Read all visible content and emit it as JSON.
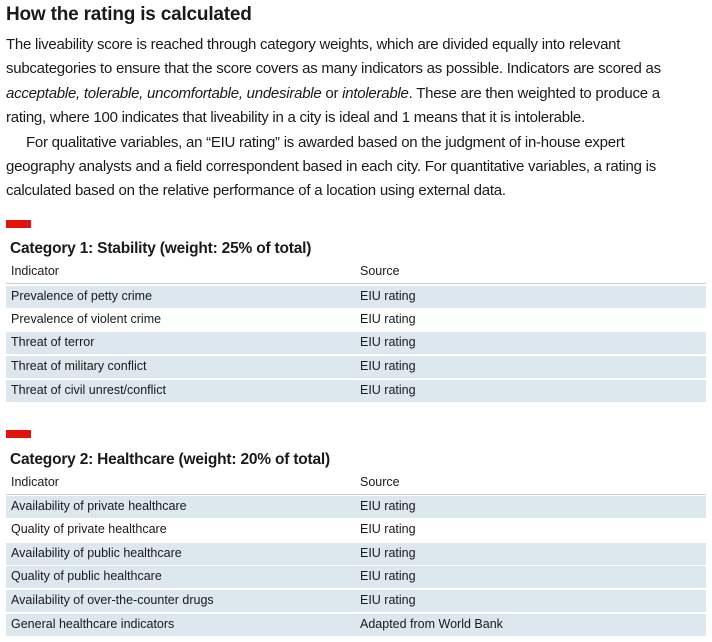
{
  "title": "How the rating is calculated",
  "intro": {
    "p1_l1": "The liveability score is reached through category weights, which are divided equally into relevant",
    "p1_l2": "subcategories to ensure that the score covers as many indicators as possible. Indicators are scored as",
    "p1_l3_em1": "acceptable, tolerable, uncomfortable, undesirable",
    "p1_l3_mid": " or ",
    "p1_l3_em2": "intolerable",
    "p1_l3_end": ". These are then weighted to produce a",
    "p1_l4": "rating, where 100 indicates that liveability in a city is ideal and 1 means that it is intolerable.",
    "p2_l1": "For qualitative variables, an “EIU rating” is awarded based on the judgment of in-house expert",
    "p2_l2": "geography analysts and a field correspondent based in each city. For quantitative variables, a rating is",
    "p2_l3": "calculated based on the relative performance of a location using external data."
  },
  "accent_color": "#e3120b",
  "row_shade_color": "#dde7ee",
  "categories": [
    {
      "title": "Category 1: Stability (weight: 25% of total)",
      "col_indicator": "Indicator",
      "col_source": "Source",
      "rows": [
        {
          "indicator": "Prevalence of petty crime",
          "source": "EIU rating"
        },
        {
          "indicator": "Prevalence of violent crime",
          "source": "EIU rating"
        },
        {
          "indicator": "Threat of terror",
          "source": "EIU rating"
        },
        {
          "indicator": "Threat of military conflict",
          "source": "EIU rating"
        },
        {
          "indicator": "Threat of civil unrest/conflict",
          "source": "EIU rating"
        }
      ]
    },
    {
      "title": "Category 2: Healthcare (weight: 20% of total)",
      "col_indicator": "Indicator",
      "col_source": "Source",
      "rows": [
        {
          "indicator": "Availability of private healthcare",
          "source": "EIU rating"
        },
        {
          "indicator": "Quality of private healthcare",
          "source": "EIU rating"
        },
        {
          "indicator": "Availability of public healthcare",
          "source": "EIU rating"
        },
        {
          "indicator": "Quality of public healthcare",
          "source": "EIU rating"
        },
        {
          "indicator": "Availability of over-the-counter drugs",
          "source": "EIU rating"
        },
        {
          "indicator": "General healthcare indicators",
          "source": "Adapted from World Bank"
        }
      ]
    }
  ]
}
